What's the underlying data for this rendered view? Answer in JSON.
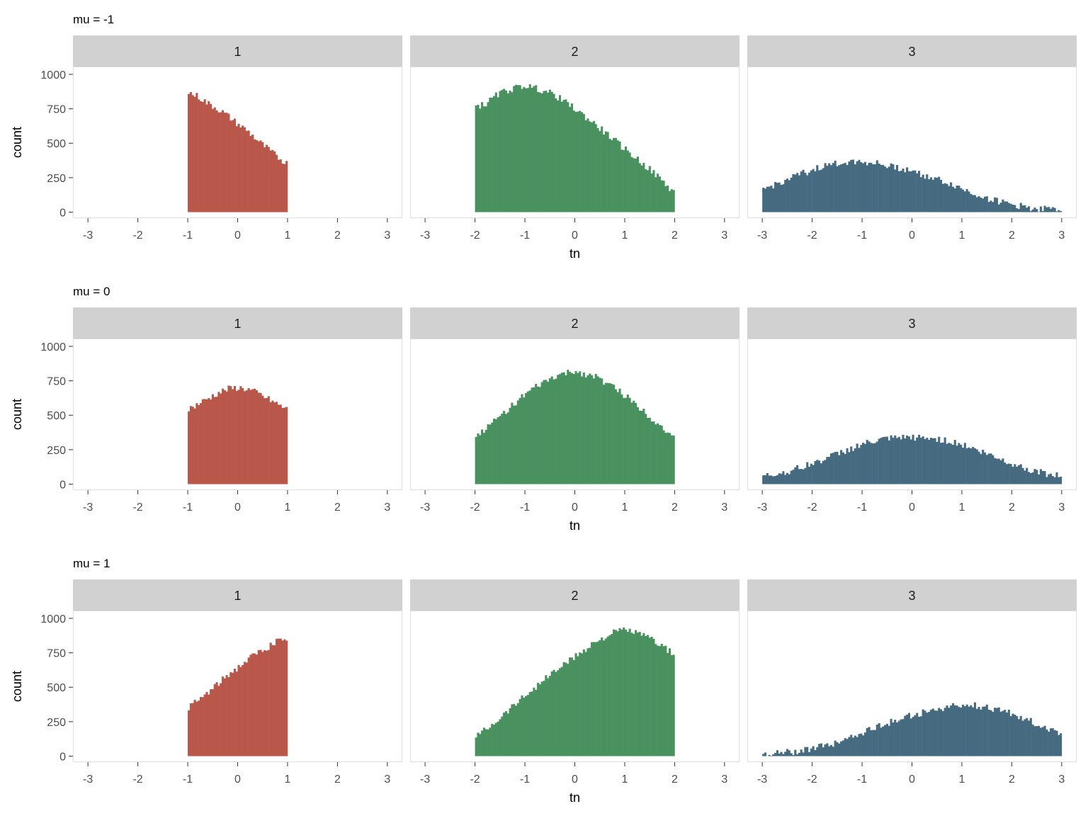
{
  "chart_data": {
    "type": "histogram",
    "facet_label": "tn",
    "xlabel": "tn",
    "ylabel": "count",
    "xlim": [
      -3.3,
      3.3
    ],
    "ylim": [
      0,
      1100
    ],
    "xticks": [
      "-3",
      "-2",
      "-1",
      "0",
      "1",
      "2",
      "3"
    ],
    "yticks": [
      "0",
      "250",
      "500",
      "750",
      "1000"
    ],
    "bin_width": 0.04,
    "grid": false,
    "legend": "none",
    "colors": {
      "1": "#b8574a",
      "2": "#4a9160",
      "3": "#466b80"
    },
    "rows": [
      {
        "title": "mu = -1",
        "panels": [
          {
            "strip": "1",
            "range": [
              -1,
              1
            ],
            "profile": [
              [
                -1,
                870
              ],
              [
                -0.8,
                840
              ],
              [
                -0.6,
                790
              ],
              [
                -0.4,
                750
              ],
              [
                -0.2,
                700
              ],
              [
                0,
                640
              ],
              [
                0.2,
                590
              ],
              [
                0.4,
                520
              ],
              [
                0.6,
                460
              ],
              [
                0.8,
                400
              ],
              [
                1,
                350
              ]
            ]
          },
          {
            "strip": "2",
            "range": [
              -2,
              2
            ],
            "profile": [
              [
                -2,
                770
              ],
              [
                -1.8,
                780
              ],
              [
                -1.6,
                840
              ],
              [
                -1.4,
                880
              ],
              [
                -1.2,
                900
              ],
              [
                -1,
                920
              ],
              [
                -0.8,
                900
              ],
              [
                -0.6,
                880
              ],
              [
                -0.4,
                850
              ],
              [
                -0.2,
                800
              ],
              [
                0,
                750
              ],
              [
                0.4,
                640
              ],
              [
                0.8,
                520
              ],
              [
                1.2,
                400
              ],
              [
                1.6,
                280
              ],
              [
                2,
                140
              ]
            ]
          },
          {
            "strip": "3",
            "range": [
              -3,
              3
            ],
            "profile": [
              [
                -3,
                160
              ],
              [
                -2.6,
                220
              ],
              [
                -2.2,
                280
              ],
              [
                -1.8,
                330
              ],
              [
                -1.4,
                360
              ],
              [
                -1.2,
                370
              ],
              [
                -0.8,
                360
              ],
              [
                -0.4,
                330
              ],
              [
                0,
                300
              ],
              [
                0.4,
                250
              ],
              [
                0.8,
                200
              ],
              [
                1.2,
                140
              ],
              [
                1.6,
                90
              ],
              [
                2,
                55
              ],
              [
                2.4,
                30
              ],
              [
                3,
                15
              ]
            ]
          }
        ]
      },
      {
        "title": "mu = 0",
        "panels": [
          {
            "strip": "1",
            "range": [
              -1,
              1
            ],
            "profile": [
              [
                -1,
                540
              ],
              [
                -0.8,
                580
              ],
              [
                -0.6,
                620
              ],
              [
                -0.4,
                660
              ],
              [
                -0.2,
                690
              ],
              [
                0,
                700
              ],
              [
                0.2,
                690
              ],
              [
                0.4,
                660
              ],
              [
                0.6,
                620
              ],
              [
                0.8,
                580
              ],
              [
                1,
                540
              ]
            ]
          },
          {
            "strip": "2",
            "range": [
              -2,
              2
            ],
            "profile": [
              [
                -2,
                340
              ],
              [
                -1.6,
                460
              ],
              [
                -1.2,
                590
              ],
              [
                -0.8,
                700
              ],
              [
                -0.4,
                780
              ],
              [
                0,
                820
              ],
              [
                0.4,
                780
              ],
              [
                0.8,
                700
              ],
              [
                1.2,
                590
              ],
              [
                1.6,
                460
              ],
              [
                2,
                340
              ]
            ]
          },
          {
            "strip": "3",
            "range": [
              -3,
              3
            ],
            "profile": [
              [
                -3,
                55
              ],
              [
                -2.5,
                90
              ],
              [
                -2,
                150
              ],
              [
                -1.5,
                220
              ],
              [
                -1,
                290
              ],
              [
                -0.5,
                330
              ],
              [
                0,
                340
              ],
              [
                0.5,
                330
              ],
              [
                1,
                290
              ],
              [
                1.5,
                220
              ],
              [
                2,
                150
              ],
              [
                2.5,
                90
              ],
              [
                3,
                55
              ]
            ]
          }
        ]
      },
      {
        "title": "mu = 1",
        "panels": [
          {
            "strip": "1",
            "range": [
              -1,
              1
            ],
            "profile": [
              [
                -1,
                350
              ],
              [
                -0.8,
                400
              ],
              [
                -0.6,
                460
              ],
              [
                -0.4,
                520
              ],
              [
                -0.2,
                590
              ],
              [
                0,
                640
              ],
              [
                0.2,
                700
              ],
              [
                0.4,
                750
              ],
              [
                0.6,
                790
              ],
              [
                0.8,
                840
              ],
              [
                1,
                820
              ]
            ]
          },
          {
            "strip": "2",
            "range": [
              -2,
              2
            ],
            "profile": [
              [
                -2,
                140
              ],
              [
                -1.6,
                250
              ],
              [
                -1.2,
                380
              ],
              [
                -0.8,
                500
              ],
              [
                -0.4,
                620
              ],
              [
                0,
                720
              ],
              [
                0.4,
                830
              ],
              [
                0.8,
                900
              ],
              [
                1,
                920
              ],
              [
                1.2,
                900
              ],
              [
                1.6,
                840
              ],
              [
                2,
                730
              ]
            ]
          },
          {
            "strip": "3",
            "range": [
              -3,
              3
            ],
            "profile": [
              [
                -3,
                15
              ],
              [
                -2.4,
                30
              ],
              [
                -2,
                55
              ],
              [
                -1.6,
                90
              ],
              [
                -1.2,
                140
              ],
              [
                -0.8,
                200
              ],
              [
                -0.4,
                250
              ],
              [
                0,
                300
              ],
              [
                0.4,
                330
              ],
              [
                0.8,
                360
              ],
              [
                1.2,
                370
              ],
              [
                1.4,
                360
              ],
              [
                1.8,
                330
              ],
              [
                2.2,
                280
              ],
              [
                2.6,
                220
              ],
              [
                3,
                160
              ]
            ]
          }
        ]
      }
    ]
  }
}
